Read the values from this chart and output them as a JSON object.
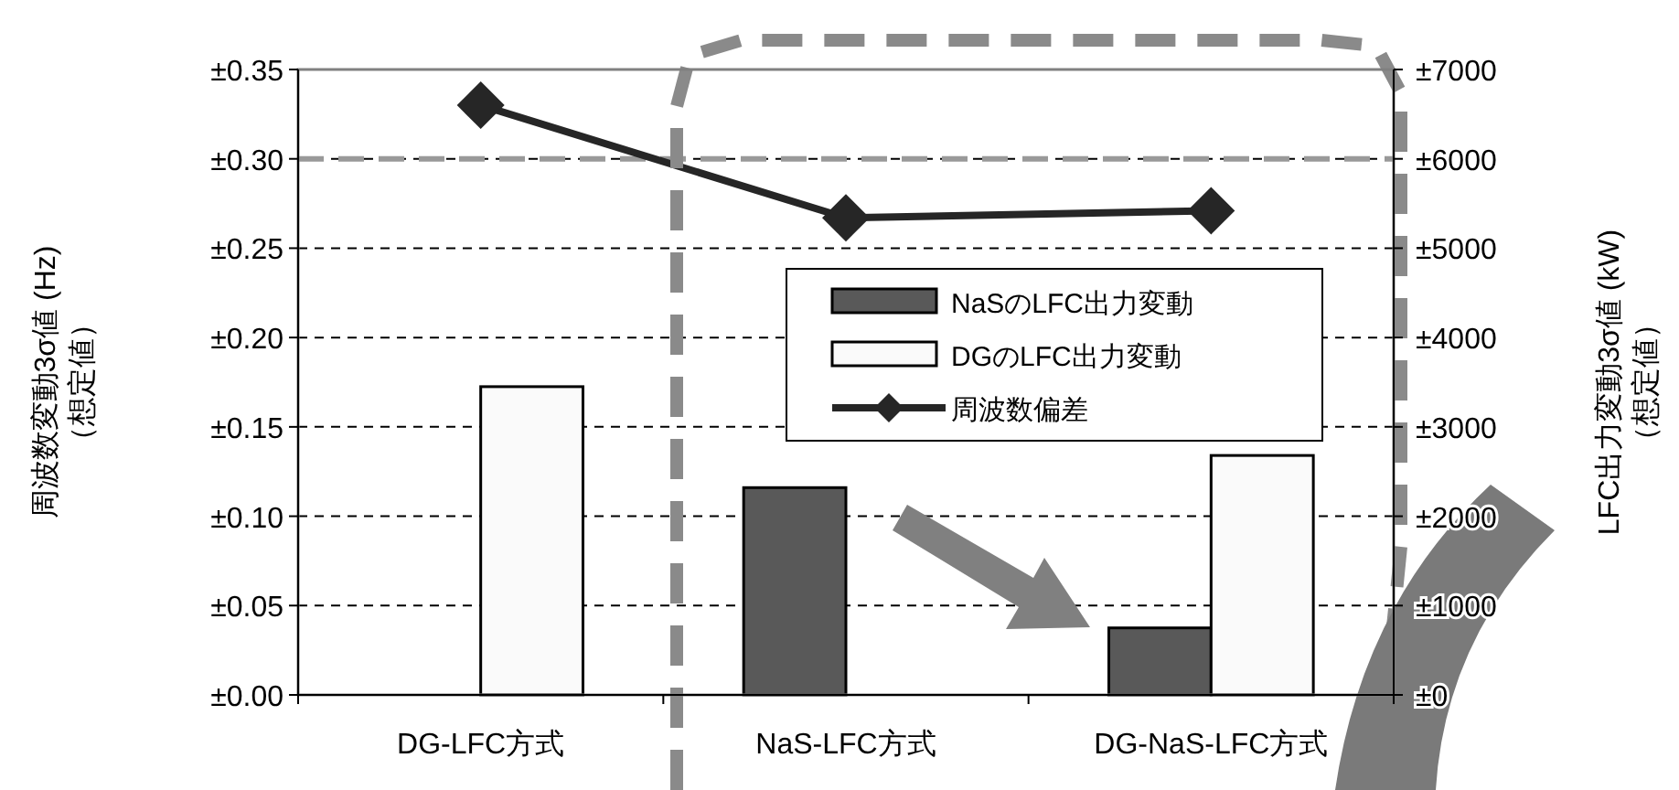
{
  "chart_data": {
    "type": "bar",
    "categories": [
      "DG-LFC方式",
      "NaS-LFC方式",
      "DG-NaS-LFC方式"
    ],
    "ylabel": "周波数変動3σ値 (Hz)\n（想定値）",
    "y2label": "LFC出力変動3σ値 (kW)\n（想定値）",
    "series": [
      {
        "name": "NaSのLFC出力変動",
        "type": "bar",
        "axis": "y2",
        "color": "#595959",
        "values": [
          null,
          2320,
          750
        ]
      },
      {
        "name": "DGのLFC出力変動",
        "type": "bar",
        "axis": "y2",
        "color": "#fafafa",
        "values": [
          3450,
          null,
          2680
        ]
      },
      {
        "name": "周波数偏差",
        "type": "line",
        "axis": "y",
        "color": "#262626",
        "marker": "diamond",
        "line_style": "solid",
        "values": [
          0.33,
          0.267,
          0.271
        ]
      }
    ],
    "ylim": [
      0,
      0.35
    ],
    "yticks": [
      {
        "value": 0,
        "label": "±0.00"
      },
      {
        "value": 0.05,
        "label": "±0.05"
      },
      {
        "value": 0.1,
        "label": "±0.10"
      },
      {
        "value": 0.15,
        "label": "±0.15"
      },
      {
        "value": 0.2,
        "label": "±0.20"
      },
      {
        "value": 0.25,
        "label": "±0.25"
      },
      {
        "value": 0.3,
        "label": "±0.30"
      },
      {
        "value": 0.35,
        "label": "±0.35"
      }
    ],
    "y2lim": [
      0,
      7000
    ],
    "y2ticks": [
      {
        "value": 0,
        "label": "±0"
      },
      {
        "value": 1000,
        "label": "±1000"
      },
      {
        "value": 2000,
        "label": "±2000"
      },
      {
        "value": 3000,
        "label": "±3000"
      },
      {
        "value": 4000,
        "label": "±4000"
      },
      {
        "value": 5000,
        "label": "±5000"
      },
      {
        "value": 6000,
        "label": "±6000"
      },
      {
        "value": 7000,
        "label": "±7000"
      }
    ],
    "ref_lines": [
      {
        "axis": "y",
        "value": 0.3,
        "color": "#999999",
        "line_style": "dashed"
      }
    ],
    "grid": "y",
    "legend": "right"
  }
}
